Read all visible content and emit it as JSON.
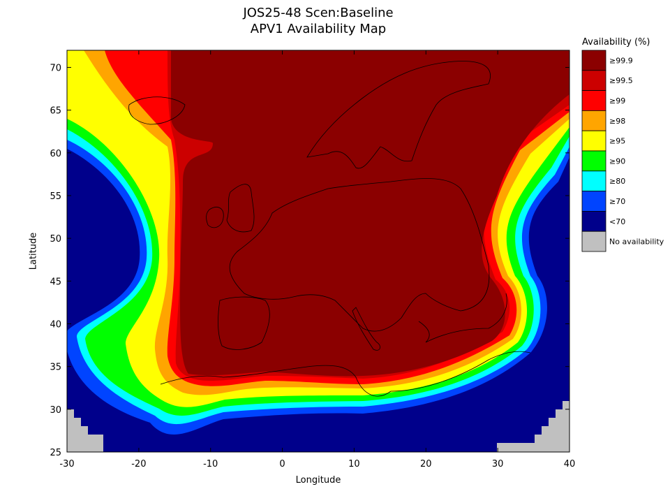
{
  "title": "JOS25-48 Scen:Baseline",
  "subtitle": "APV1 Availability Map",
  "xlabel": "Longitude",
  "ylabel": "Latitude",
  "legend_title": "Availability (%)",
  "legend": [
    {
      "label": "≥99.9",
      "color": "#8b0000"
    },
    {
      "label": "≥99.5",
      "color": "#cc0000"
    },
    {
      "label": "≥99",
      "color": "#ff0000"
    },
    {
      "label": "≥98",
      "color": "#ffa500"
    },
    {
      "label": "≥95",
      "color": "#ffff00"
    },
    {
      "label": "≥90",
      "color": "#00ff00"
    },
    {
      "label": "≥80",
      "color": "#00ffff"
    },
    {
      "label": "≥70",
      "color": "#0044ff"
    },
    {
      "label": "<70",
      "color": "#00008b"
    },
    {
      "label": "No availability",
      "color": "#c0c0c0"
    }
  ],
  "chart_data": {
    "type": "heatmap",
    "title": "JOS25-48 Scen:Baseline",
    "subtitle": "APV1 Availability Map",
    "xlabel": "Longitude",
    "ylabel": "Latitude",
    "xlim": [
      -30,
      40
    ],
    "ylim": [
      25,
      72
    ],
    "xticks": [
      -30,
      -20,
      -10,
      0,
      10,
      20,
      30,
      40
    ],
    "yticks": [
      25,
      30,
      35,
      40,
      45,
      50,
      55,
      60,
      65,
      70
    ],
    "legend_position": "right"
  }
}
